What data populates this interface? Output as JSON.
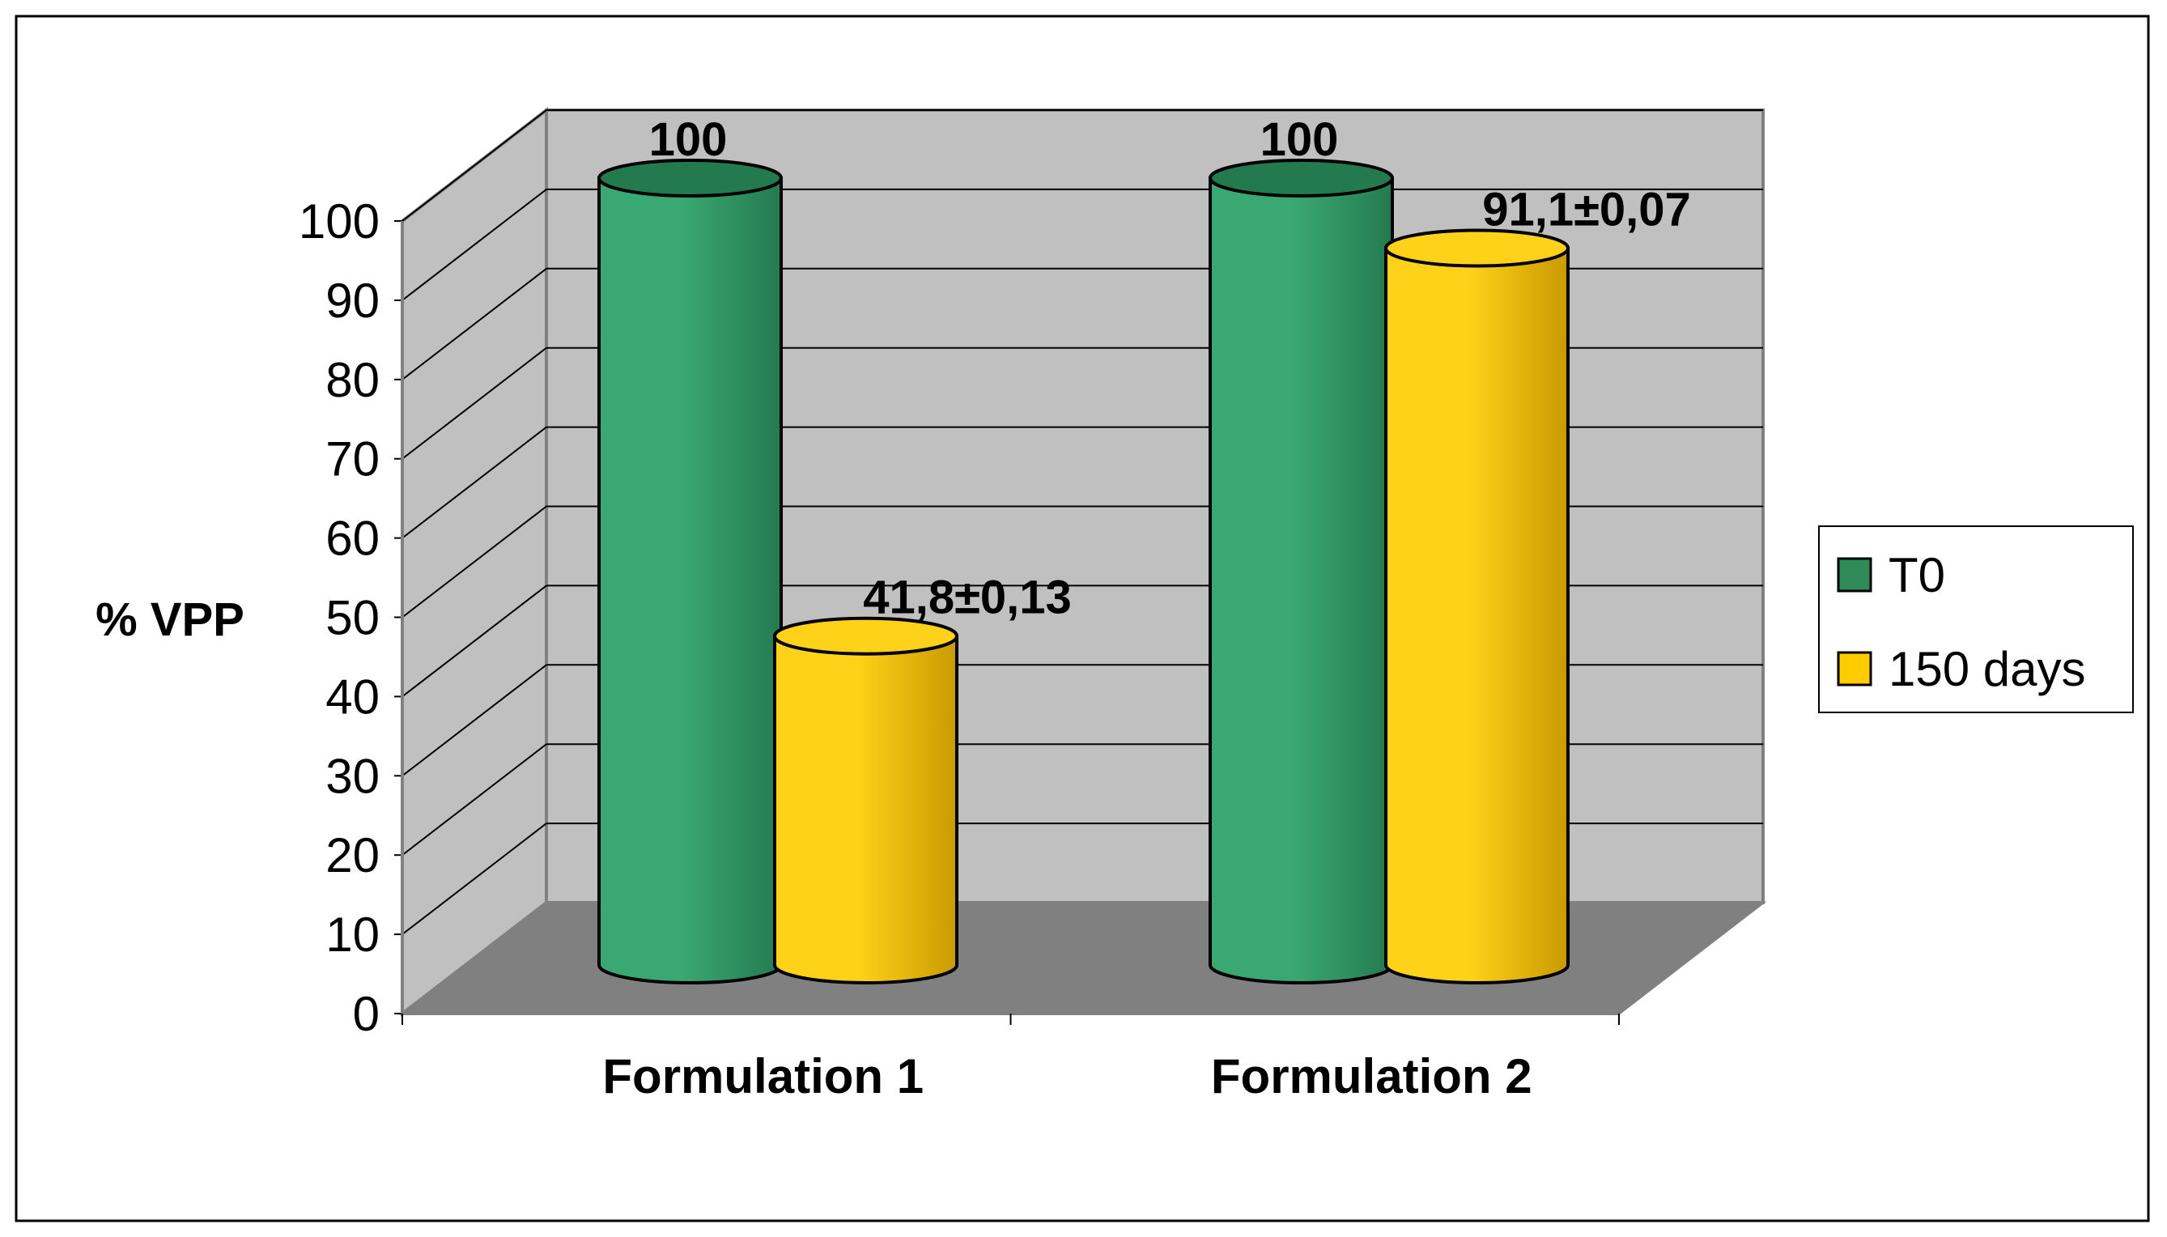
{
  "chart_data": {
    "type": "bar",
    "style": "3d-cylinder",
    "categories": [
      "Formulation 1",
      "Formulation 2"
    ],
    "series": [
      {
        "name": "T0",
        "values": [
          100,
          100
        ],
        "labels": [
          "100",
          "100"
        ],
        "color": "#2e8b57"
      },
      {
        "name": "150 days",
        "values": [
          41.8,
          91.1
        ],
        "labels": [
          "41,8±0,13",
          "91,1±0,07"
        ],
        "color": "#ffcc00"
      }
    ],
    "ylabel": "% VPP",
    "ylim": [
      0,
      100
    ],
    "yticks": [
      0,
      10,
      20,
      30,
      40,
      50,
      60,
      70,
      80,
      90,
      100
    ],
    "grid": true,
    "legend": "right",
    "colors": {
      "wall": "#c0c0c0",
      "floor": "#808080",
      "grid": "#000000",
      "t0_light": "#3aa872",
      "t0_dark": "#247a4f",
      "days_light": "#ffd21a",
      "days_dark": "#c99a00"
    }
  }
}
